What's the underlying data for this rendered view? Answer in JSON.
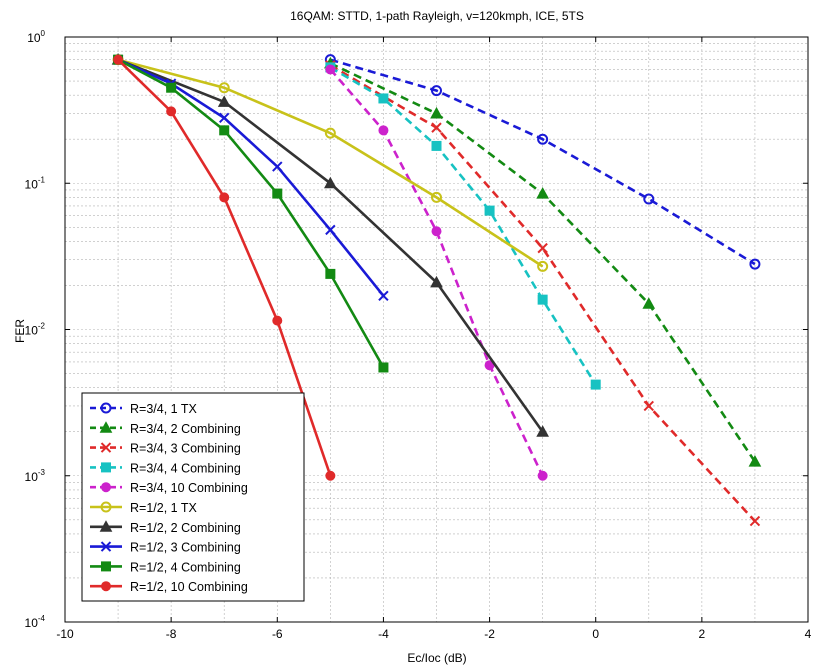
{
  "chart_data": {
    "type": "line",
    "title": "16QAM: STTD, 1-path Rayleigh, v=120kmph, ICE, 5TS",
    "xlabel": "Ec/Ioc (dB)",
    "ylabel": "FER",
    "xlim": [
      -10,
      4
    ],
    "ylim": [
      0.0001,
      1
    ],
    "yscale": "log",
    "grid": true,
    "legend_position": "bottom-left",
    "x_ticks": [
      "-10",
      "-8",
      "-6",
      "-4",
      "-2",
      "0",
      "2",
      "4"
    ],
    "y_ticks": [
      {
        "base": "10",
        "exp": "0"
      },
      {
        "base": "10",
        "exp": "-1"
      },
      {
        "base": "10",
        "exp": "-2"
      },
      {
        "base": "10",
        "exp": "-3"
      },
      {
        "base": "10",
        "exp": "-4"
      }
    ],
    "series": [
      {
        "name": "R=3/4, 1 TX",
        "color": "#1a1ad6",
        "dash": true,
        "marker": "circle",
        "x": [
          -5,
          -3,
          -1,
          1,
          3
        ],
        "y": [
          0.7,
          0.43,
          0.2,
          0.078,
          0.028
        ]
      },
      {
        "name": "R=3/4, 2 Combining",
        "color": "#138a13",
        "dash": true,
        "marker": "triangle",
        "x": [
          -5,
          -3,
          -1,
          1,
          3
        ],
        "y": [
          0.66,
          0.3,
          0.085,
          0.015,
          0.00125
        ]
      },
      {
        "name": "R=3/4, 3 Combining",
        "color": "#e02a2a",
        "dash": true,
        "marker": "x",
        "x": [
          -5,
          -3,
          -1,
          1,
          3
        ],
        "y": [
          0.64,
          0.24,
          0.036,
          0.003,
          0.00049
        ]
      },
      {
        "name": "R=3/4, 4 Combining",
        "color": "#17c2c2",
        "dash": true,
        "marker": "square",
        "x": [
          -5,
          -4,
          -3,
          -2,
          -1,
          0
        ],
        "y": [
          0.62,
          0.38,
          0.18,
          0.065,
          0.016,
          0.0042
        ]
      },
      {
        "name": "R=3/4, 10 Combining",
        "color": "#cc22cc",
        "dash": true,
        "marker": "dot",
        "x": [
          -5,
          -4,
          -3,
          -2,
          -1
        ],
        "y": [
          0.6,
          0.23,
          0.047,
          0.0057,
          0.001
        ]
      },
      {
        "name": "R=1/2, 1 TX",
        "color": "#c8c21a",
        "dash": false,
        "marker": "circle",
        "x": [
          -9,
          -7,
          -5,
          -3,
          -1
        ],
        "y": [
          0.7,
          0.45,
          0.22,
          0.08,
          0.027
        ]
      },
      {
        "name": "R=1/2, 2 Combining",
        "color": "#333333",
        "dash": false,
        "marker": "triangle",
        "x": [
          -9,
          -7,
          -5,
          -3,
          -1
        ],
        "y": [
          0.7,
          0.36,
          0.1,
          0.021,
          0.002
        ]
      },
      {
        "name": "R=1/2, 3 Combining",
        "color": "#1a1ad6",
        "dash": false,
        "marker": "x",
        "x": [
          -9,
          -8,
          -7,
          -6,
          -5,
          -4
        ],
        "y": [
          0.7,
          0.48,
          0.28,
          0.13,
          0.048,
          0.017
        ]
      },
      {
        "name": "R=1/2, 4 Combining",
        "color": "#138a13",
        "dash": false,
        "marker": "square",
        "x": [
          -9,
          -8,
          -7,
          -6,
          -5,
          -4
        ],
        "y": [
          0.7,
          0.45,
          0.23,
          0.085,
          0.024,
          0.0055
        ]
      },
      {
        "name": "R=1/2, 10 Combining",
        "color": "#e02a2a",
        "dash": false,
        "marker": "dot",
        "x": [
          -9,
          -8,
          -7,
          -6,
          -5
        ],
        "y": [
          0.7,
          0.31,
          0.08,
          0.0115,
          0.001
        ]
      }
    ]
  }
}
